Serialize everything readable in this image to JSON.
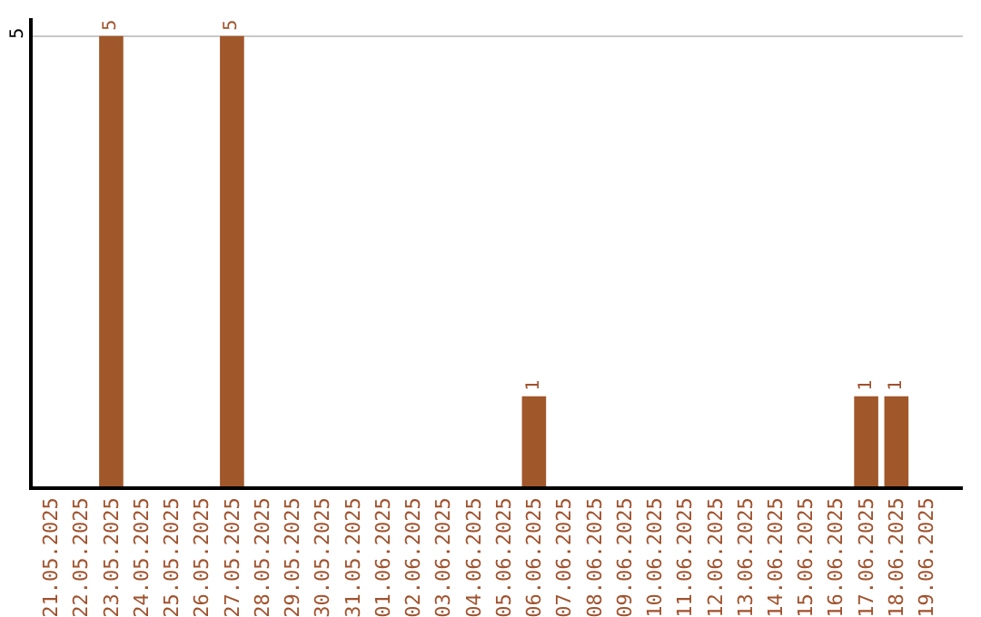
{
  "chart_data": {
    "type": "bar",
    "categories": [
      "21.05.2025",
      "22.05.2025",
      "23.05.2025",
      "24.05.2025",
      "25.05.2025",
      "26.05.2025",
      "27.05.2025",
      "28.05.2025",
      "29.05.2025",
      "30.05.2025",
      "31.05.2025",
      "01.06.2025",
      "02.06.2025",
      "03.06.2025",
      "04.06.2025",
      "05.06.2025",
      "06.06.2025",
      "07.06.2025",
      "08.06.2025",
      "09.06.2025",
      "10.06.2025",
      "11.06.2025",
      "12.06.2025",
      "13.06.2025",
      "14.06.2025",
      "15.06.2025",
      "16.06.2025",
      "17.06.2025",
      "18.06.2025",
      "19.06.2025"
    ],
    "values": [
      0,
      0,
      5,
      0,
      0,
      0,
      5,
      0,
      0,
      0,
      0,
      0,
      0,
      0,
      0,
      0,
      1,
      0,
      0,
      0,
      0,
      0,
      0,
      0,
      0,
      0,
      0,
      1,
      1,
      0
    ],
    "value_labels": [
      null,
      null,
      "5",
      null,
      null,
      null,
      "5",
      null,
      null,
      null,
      null,
      null,
      null,
      null,
      null,
      null,
      "1",
      null,
      null,
      null,
      null,
      null,
      null,
      null,
      null,
      null,
      null,
      "1",
      "1",
      null
    ],
    "color": "#a0572a",
    "ylim": [
      0,
      5.2
    ],
    "yticks": [
      5
    ],
    "grid": "y",
    "legend": false
  }
}
